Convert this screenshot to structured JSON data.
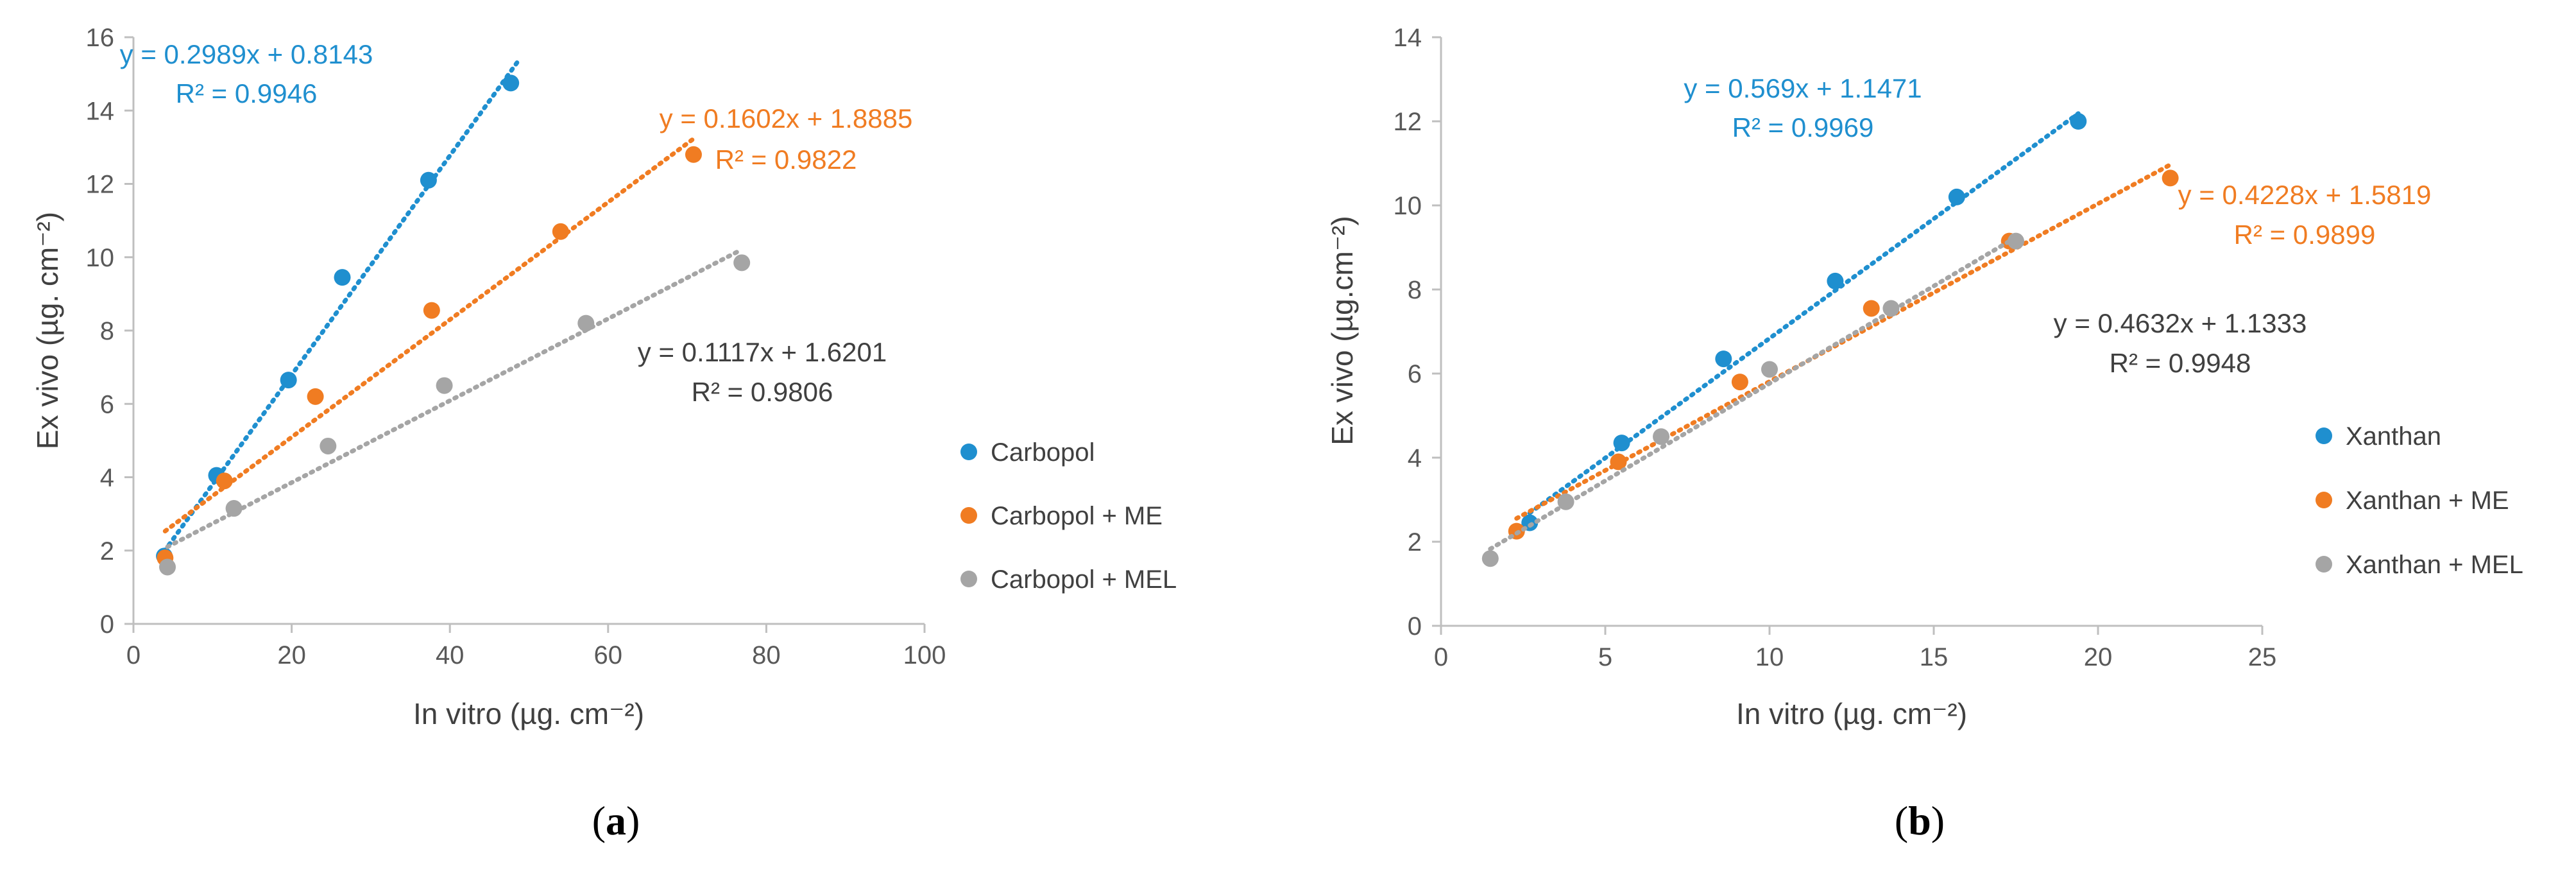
{
  "colors": {
    "blue": "#1f8fcf",
    "orange": "#f07c22",
    "gray": "#a5a5a5",
    "axis": "#bfbfbf",
    "text": "#404040"
  },
  "chart_data": [
    {
      "type": "scatter",
      "panel_label": "a",
      "xlabel": "In vitro (µg. cm⁻²)",
      "ylabel": "Ex vivo (µg. cm⁻²)",
      "xlim": [
        0,
        100
      ],
      "ylim": [
        0,
        16
      ],
      "xticks": [
        0,
        20,
        40,
        60,
        80,
        100
      ],
      "yticks": [
        0,
        2,
        4,
        6,
        8,
        10,
        12,
        14,
        16
      ],
      "series": [
        {
          "name": "Carbopol",
          "color_key": "blue",
          "x": [
            3.9,
            10.5,
            19.6,
            26.4,
            37.3,
            47.7
          ],
          "y": [
            1.85,
            4.05,
            6.65,
            9.45,
            12.1,
            14.75
          ],
          "trendline": {
            "slope": 0.2989,
            "intercept": 0.8143,
            "x_range": [
              3.9,
              48.5
            ]
          },
          "equation": "y = 0.2989x  + 0.8143",
          "r2": "R² = 0.9946"
        },
        {
          "name": "Carbopol + ME",
          "color_key": "orange",
          "x": [
            4.0,
            11.5,
            23.0,
            37.7,
            54.0,
            70.8
          ],
          "y": [
            1.8,
            3.9,
            6.2,
            8.55,
            10.7,
            12.8
          ],
          "trendline": {
            "slope": 0.1602,
            "intercept": 1.8885,
            "x_range": [
              4.0,
              70.8
            ]
          },
          "equation": "y = 0.1602x  + 1.8885",
          "r2": "R² = 0.9822"
        },
        {
          "name": "Carbopol + MEL",
          "color_key": "gray",
          "x": [
            4.3,
            12.7,
            24.6,
            39.3,
            57.2,
            76.9
          ],
          "y": [
            1.55,
            3.15,
            4.85,
            6.5,
            8.2,
            9.85
          ],
          "trendline": {
            "slope": 0.1117,
            "intercept": 1.6201,
            "x_range": [
              4.3,
              76.9
            ]
          },
          "equation": "y = 0.1117x  + 1.6201",
          "r2": "R² = 0.9806"
        }
      ]
    },
    {
      "type": "scatter",
      "panel_label": "b",
      "xlabel": "In vitro (µg. cm⁻²)",
      "ylabel": "Ex vivo (µg.cm⁻²)",
      "xlim": [
        0,
        25
      ],
      "ylim": [
        0,
        14
      ],
      "xticks": [
        0,
        5,
        10,
        15,
        20,
        25
      ],
      "yticks": [
        0,
        2,
        4,
        6,
        8,
        10,
        12,
        14
      ],
      "series": [
        {
          "name": "Xanthan",
          "color_key": "blue",
          "x": [
            2.7,
            5.5,
            8.6,
            12.0,
            15.7,
            19.4
          ],
          "y": [
            2.45,
            4.35,
            6.35,
            8.2,
            10.2,
            12.0
          ],
          "trendline": {
            "slope": 0.569,
            "intercept": 1.1471,
            "x_range": [
              2.7,
              19.4
            ]
          },
          "equation": "y = 0.569x  + 1.1471",
          "r2": "R² = 0.9969"
        },
        {
          "name": "Xanthan + ME",
          "color_key": "orange",
          "x": [
            2.3,
            5.4,
            9.1,
            13.1,
            17.3,
            22.2
          ],
          "y": [
            2.25,
            3.9,
            5.8,
            7.55,
            9.15,
            10.65
          ],
          "trendline": {
            "slope": 0.4228,
            "intercept": 1.5819,
            "x_range": [
              2.3,
              22.2
            ]
          },
          "equation": "y = 0.4228x  + 1.5819",
          "r2": "R² = 0.9899"
        },
        {
          "name": "Xanthan + MEL",
          "color_key": "gray",
          "x": [
            1.5,
            3.8,
            6.7,
            10.0,
            13.7,
            17.5
          ],
          "y": [
            1.6,
            2.95,
            4.5,
            6.1,
            7.55,
            9.15
          ],
          "trendline": {
            "slope": 0.4632,
            "intercept": 1.1333,
            "x_range": [
              1.5,
              17.5
            ]
          },
          "equation": "y = 0.4632x  + 1.1333",
          "r2": "R² = 0.9948"
        }
      ]
    }
  ]
}
